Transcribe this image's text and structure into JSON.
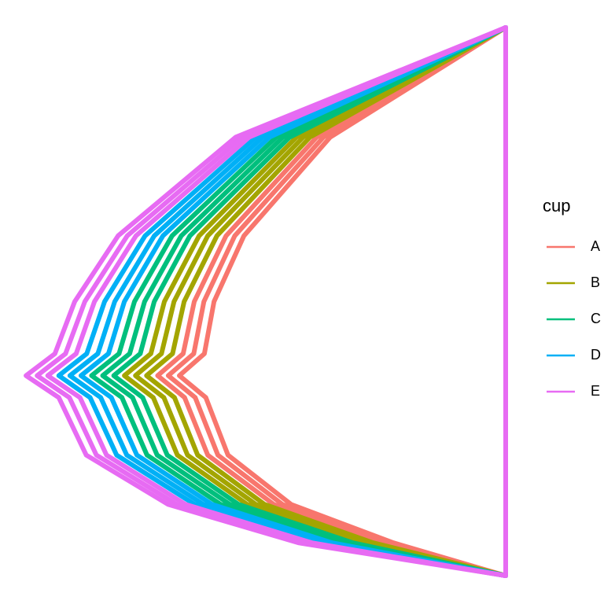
{
  "chart_data": {
    "type": "line",
    "legend_title": "cup",
    "legend_position": "right",
    "xlim": [
      0,
      100
    ],
    "ylim": [
      0,
      100
    ],
    "y": [
      100,
      80,
      62,
      50,
      40.5,
      36.5,
      32.5,
      22,
      13,
      6,
      0
    ],
    "series": [
      {
        "name": "A",
        "color": "#F8766D",
        "curves": [
          [
            100,
            63.6,
            45.7,
            39.5,
            37.5,
            32.3,
            37.8,
            42.4,
            55.5,
            76.7,
            100
          ],
          [
            100,
            62.2,
            43.8,
            37.4,
            35.3,
            30.0,
            35.6,
            40.3,
            53.7,
            75.3,
            100
          ],
          [
            100,
            60.8,
            42.0,
            35.4,
            33.1,
            27.8,
            33.4,
            38.2,
            51.9,
            73.9,
            100
          ]
        ]
      },
      {
        "name": "B",
        "color": "#A3A500",
        "curves": [
          [
            100,
            59.4,
            40.1,
            33.3,
            30.9,
            25.5,
            31.3,
            36.1,
            50.0,
            72.5,
            100
          ],
          [
            100,
            58.0,
            38.2,
            31.2,
            28.6,
            23.2,
            29.1,
            34.0,
            48.2,
            71.1,
            100
          ],
          [
            100,
            56.6,
            36.4,
            29.2,
            26.4,
            20.9,
            26.9,
            31.9,
            46.4,
            69.7,
            100
          ]
        ]
      },
      {
        "name": "C",
        "color": "#00BF7D",
        "curves": [
          [
            100,
            55.2,
            34.5,
            27.1,
            24.2,
            18.7,
            24.7,
            29.8,
            44.6,
            68.3,
            100
          ],
          [
            100,
            53.8,
            32.7,
            25.1,
            22.0,
            16.4,
            22.6,
            27.7,
            42.8,
            66.9,
            100
          ],
          [
            100,
            52.4,
            30.8,
            23.0,
            19.8,
            14.1,
            20.4,
            25.6,
            40.9,
            65.4,
            100
          ]
        ]
      },
      {
        "name": "D",
        "color": "#00B0F6",
        "curves": [
          [
            100,
            51.0,
            28.9,
            20.9,
            17.6,
            11.9,
            18.2,
            23.5,
            39.1,
            64.0,
            100
          ],
          [
            100,
            49.6,
            27.1,
            18.9,
            15.4,
            9.6,
            16.0,
            21.4,
            37.3,
            62.6,
            100
          ],
          [
            100,
            48.2,
            25.2,
            16.8,
            13.1,
            7.3,
            13.8,
            19.3,
            35.5,
            61.2,
            100
          ]
        ]
      },
      {
        "name": "E",
        "color": "#E76BF3",
        "curves": [
          [
            100,
            46.8,
            23.3,
            14.7,
            10.9,
            5.0,
            11.7,
            17.2,
            33.6,
            59.8,
            100
          ],
          [
            100,
            45.4,
            21.5,
            12.7,
            8.7,
            2.8,
            9.5,
            15.1,
            31.8,
            58.4,
            100
          ],
          [
            100,
            44,
            19.6,
            10.6,
            6.5,
            0.5,
            7.3,
            13,
            30,
            57,
            100
          ]
        ]
      }
    ]
  }
}
